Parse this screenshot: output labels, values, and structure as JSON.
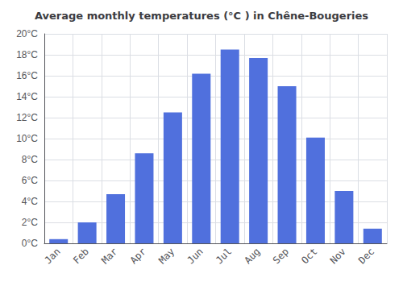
{
  "chart_data": {
    "type": "bar",
    "title": "Average monthly temperatures (°C ) in Chêne-Bougeries",
    "categories": [
      "Jan",
      "Feb",
      "Mar",
      "Apr",
      "May",
      "Jun",
      "Jul",
      "Aug",
      "Sep",
      "Oct",
      "Nov",
      "Dec"
    ],
    "values": [
      0.4,
      2.0,
      4.7,
      8.6,
      12.5,
      16.2,
      18.5,
      17.7,
      15.0,
      10.1,
      5.0,
      1.4
    ],
    "ylim": [
      0,
      20
    ],
    "yticks": [
      {
        "value": 0,
        "label": "0°C"
      },
      {
        "value": 2,
        "label": "2°C"
      },
      {
        "value": 4,
        "label": "4°C"
      },
      {
        "value": 6,
        "label": "6°C"
      },
      {
        "value": 8,
        "label": "8°C"
      },
      {
        "value": 10,
        "label": "10°C"
      },
      {
        "value": 12,
        "label": "12°C"
      },
      {
        "value": 14,
        "label": "14°C"
      },
      {
        "value": 16,
        "label": "16°C"
      },
      {
        "value": 18,
        "label": "18°C"
      },
      {
        "value": 20,
        "label": "20°C"
      }
    ],
    "grid": true
  }
}
